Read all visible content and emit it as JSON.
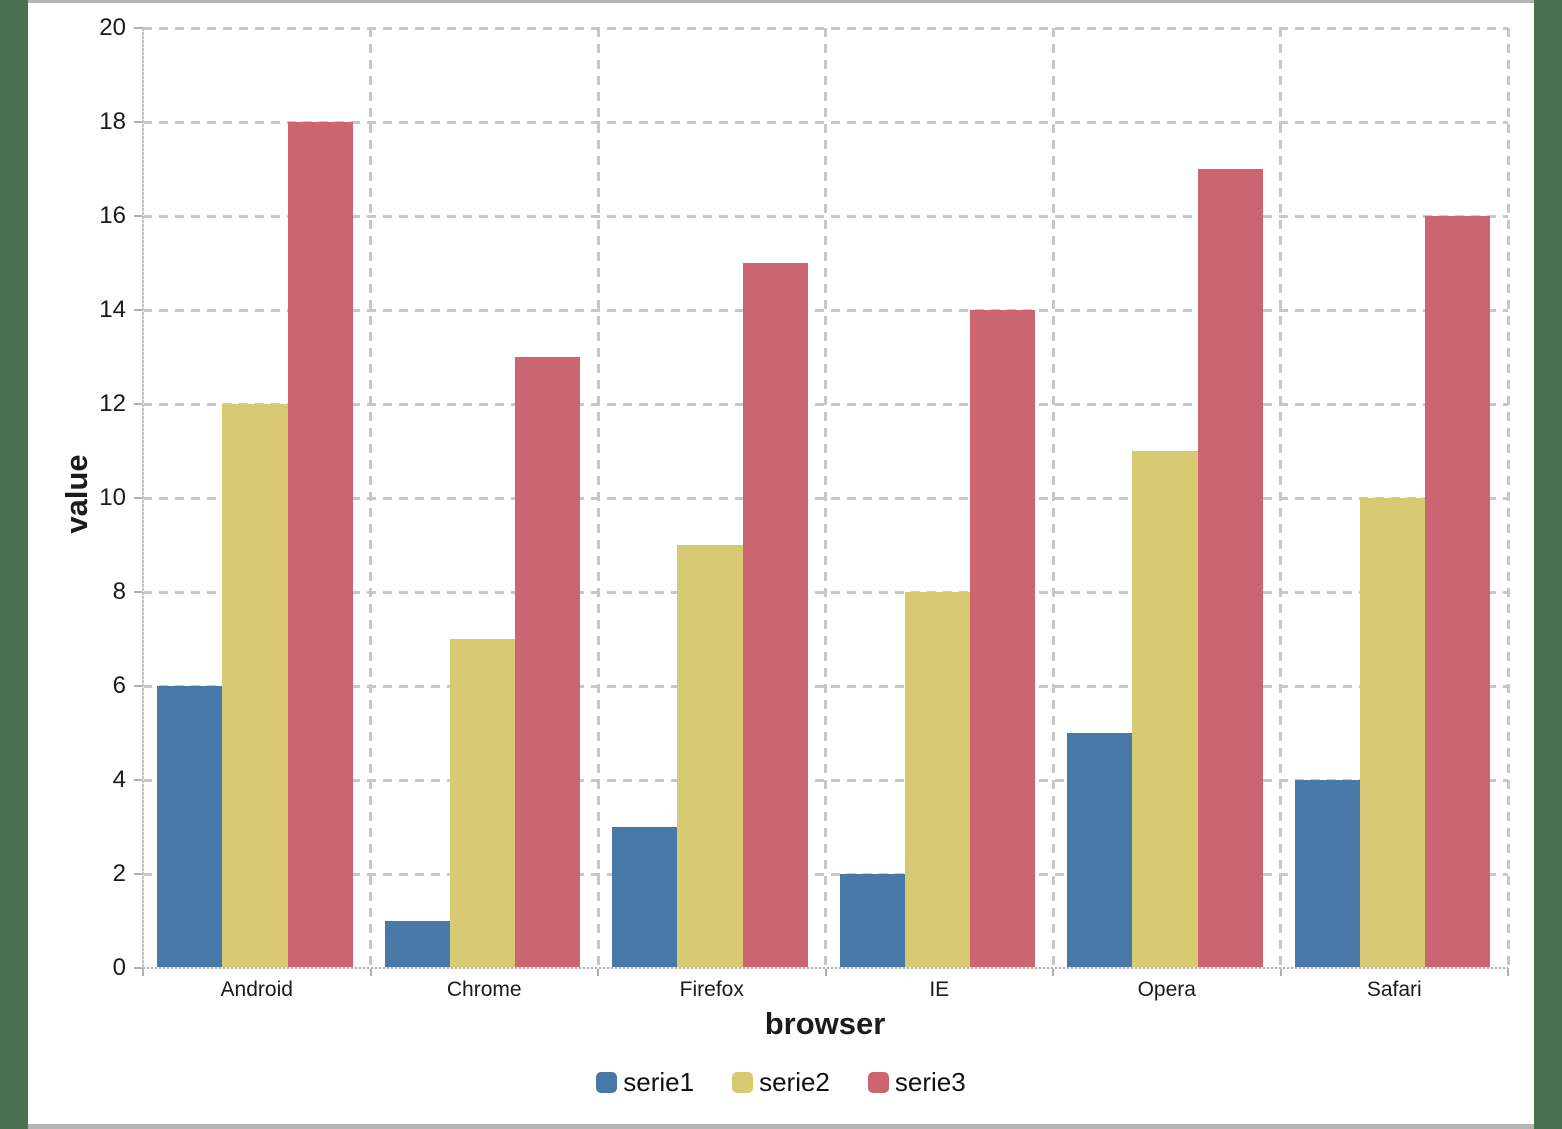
{
  "page_background": "#4a714f",
  "canvas_background": "#ffffff",
  "chart_data": {
    "type": "bar",
    "title": "",
    "xlabel": "browser",
    "ylabel": "value",
    "categories": [
      "Android",
      "Chrome",
      "Firefox",
      "IE",
      "Opera",
      "Safari"
    ],
    "series": [
      {
        "name": "serie1",
        "color": "#4878a8",
        "values": [
          6,
          1,
          3,
          2,
          5,
          4
        ]
      },
      {
        "name": "serie2",
        "color": "#d8c973",
        "values": [
          12,
          7,
          9,
          8,
          11,
          10
        ]
      },
      {
        "name": "serie3",
        "color": "#cb6572",
        "values": [
          18,
          13,
          15,
          14,
          17,
          16
        ]
      }
    ],
    "ylim": [
      0,
      20
    ],
    "ytick_step": 2,
    "y_tick_labels": [
      "0",
      "2",
      "4",
      "6",
      "8",
      "10",
      "12",
      "14",
      "16",
      "18",
      "20"
    ],
    "grid": true,
    "gridline_color": "#c7c7c7",
    "legend_position": "bottom"
  }
}
